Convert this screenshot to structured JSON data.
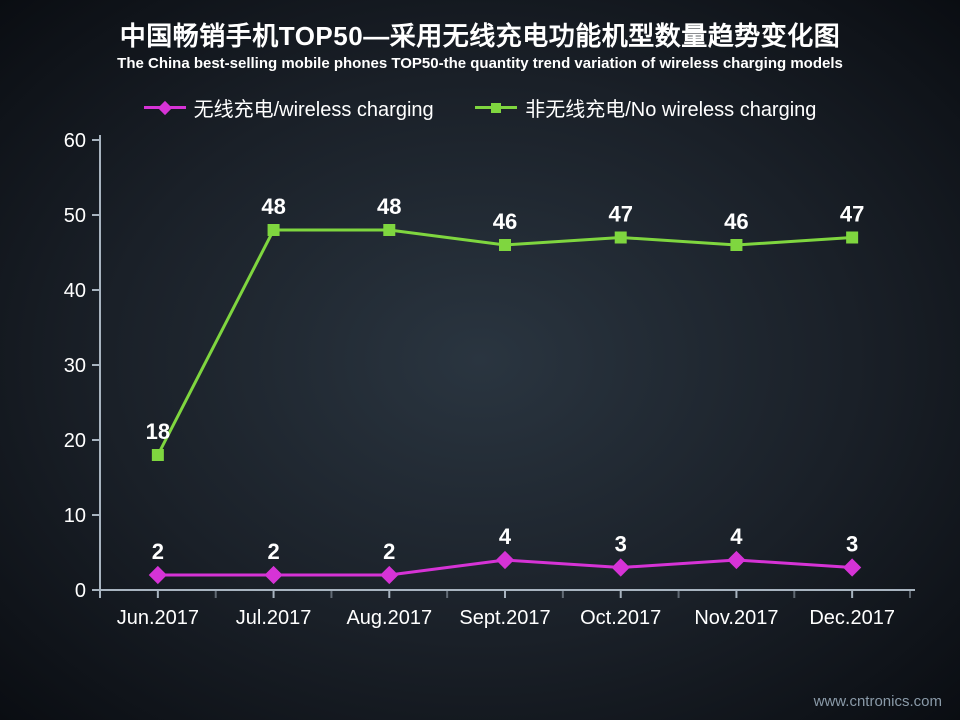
{
  "title": {
    "cn": "中国畅销手机TOP50—采用无线充电功能机型数量趋势变化图",
    "en": "The China best-selling mobile phones TOP50-the quantity trend variation of wireless charging models",
    "cn_fontsize": 26,
    "en_fontsize": 15,
    "color": "#ffffff"
  },
  "legend": {
    "wireless": "无线充电/wireless charging",
    "no_wireless": "非无线充电/No wireless charging",
    "fontsize": 20
  },
  "chart": {
    "type": "line",
    "background_gradient": {
      "center": "#2a3540",
      "mid": "#1a2028",
      "edge": "#0a0d12"
    },
    "axis_color": "#a8b4c0",
    "tick_color": "#ffffff",
    "label_fontsize": 20,
    "data_label_fontsize": 22,
    "ylim": [
      0,
      60
    ],
    "ytick_step": 10,
    "yticks": [
      0,
      10,
      20,
      30,
      40,
      50,
      60
    ],
    "categories": [
      "Jun.2017",
      "Jul.2017",
      "Aug.2017",
      "Sept.2017",
      "Oct.2017",
      "Nov.2017",
      "Dec.2017"
    ],
    "series": {
      "wireless": {
        "label": "无线充电/wireless charging",
        "values": [
          2,
          2,
          2,
          4,
          3,
          4,
          3
        ],
        "color": "#d633d6",
        "marker": "diamond",
        "marker_size": 10,
        "line_width": 3
      },
      "no_wireless": {
        "label": "非无线充电/No wireless charging",
        "values": [
          18,
          48,
          48,
          46,
          47,
          46,
          47
        ],
        "color": "#7fd63f",
        "marker": "square",
        "marker_size": 10,
        "line_width": 3
      }
    }
  },
  "watermark": "www.cntronics.com"
}
